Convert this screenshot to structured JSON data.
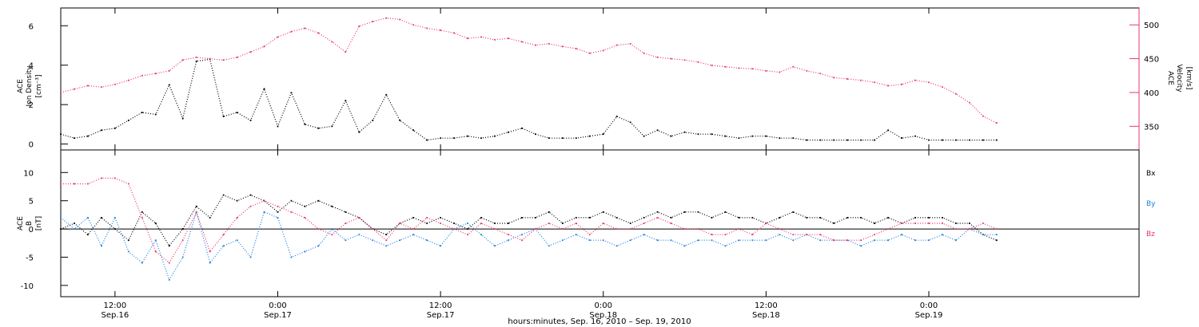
{
  "figure": {
    "xlabel": "hours:minutes, Sep. 16, 2010 – Sep. 19, 2010",
    "time_ticks": [
      {
        "hour": 12,
        "time": "12:00",
        "date": "Sep.16"
      },
      {
        "hour": 24,
        "time": "0:00",
        "date": "Sep.17"
      },
      {
        "hour": 36,
        "time": "12:00",
        "date": "Sep.17"
      },
      {
        "hour": 48,
        "time": "0:00",
        "date": "Sep.18"
      },
      {
        "hour": 60,
        "time": "12:00",
        "date": "Sep.18"
      },
      {
        "hour": 72,
        "time": "0:00",
        "date": "Sep.19"
      }
    ],
    "colors": {
      "black": "#000000",
      "pink": "#e8356a",
      "blue": "#1f7fe0"
    }
  },
  "chart_data": [
    {
      "type": "scatter",
      "panel": "top",
      "x_unit": "hours since Sep. 16, 2010 00:00",
      "xlim": [
        8,
        87.5
      ],
      "left_axis": {
        "line1": "ACE",
        "line2": "Ion Density",
        "line3": "[cm⁻³]",
        "ylim": [
          -0.3,
          6.9
        ],
        "ticks": [
          0,
          2,
          4,
          6
        ],
        "color": "#000000"
      },
      "right_axis": {
        "line1": "ACE",
        "line2": "Velocity",
        "line3": "[km/s]",
        "ylim": [
          315,
          525
        ],
        "ticks": [
          350,
          400,
          450,
          500
        ],
        "color": "#e8356a"
      },
      "series": [
        {
          "axis": "left",
          "color": "#000000",
          "x": [
            8,
            9,
            10,
            11,
            12,
            13,
            14,
            15,
            16,
            17,
            18,
            19,
            20,
            21,
            22,
            23,
            24,
            25,
            26,
            27,
            28,
            29,
            30,
            31,
            32,
            33,
            34,
            35,
            36,
            37,
            38,
            39,
            40,
            41,
            42,
            43,
            44,
            45,
            46,
            47,
            48,
            49,
            50,
            51,
            52,
            53,
            54,
            55,
            56,
            57,
            58,
            59,
            60,
            61,
            62,
            63,
            64,
            65,
            66,
            67,
            68,
            69,
            70,
            71,
            72,
            73,
            74,
            75,
            76,
            77
          ],
          "y": [
            0.5,
            0.3,
            0.4,
            0.7,
            0.8,
            1.2,
            1.6,
            1.5,
            3.0,
            1.3,
            4.2,
            4.3,
            1.4,
            1.6,
            1.2,
            2.8,
            0.9,
            2.6,
            1.0,
            0.8,
            0.9,
            2.2,
            0.6,
            1.2,
            2.5,
            1.2,
            0.7,
            0.2,
            0.3,
            0.3,
            0.4,
            0.3,
            0.4,
            0.6,
            0.8,
            0.5,
            0.3,
            0.3,
            0.3,
            0.4,
            0.5,
            1.4,
            1.1,
            0.4,
            0.7,
            0.4,
            0.6,
            0.5,
            0.5,
            0.4,
            0.3,
            0.4,
            0.4,
            0.3,
            0.3,
            0.2,
            0.2,
            0.2,
            0.2,
            0.2,
            0.2,
            0.7,
            0.3,
            0.4,
            0.2,
            0.2,
            0.2,
            0.2,
            0.2,
            0.2
          ]
        },
        {
          "axis": "right",
          "color": "#e8356a",
          "x": [
            8,
            9,
            10,
            11,
            12,
            13,
            14,
            15,
            16,
            17,
            18,
            19,
            20,
            21,
            22,
            23,
            24,
            25,
            26,
            27,
            28,
            29,
            30,
            31,
            32,
            33,
            34,
            35,
            36,
            37,
            38,
            39,
            40,
            41,
            42,
            43,
            44,
            45,
            46,
            47,
            48,
            49,
            50,
            51,
            52,
            53,
            54,
            55,
            56,
            57,
            58,
            59,
            60,
            61,
            62,
            63,
            64,
            65,
            66,
            67,
            68,
            69,
            70,
            71,
            72,
            73,
            74,
            75,
            76,
            77
          ],
          "y": [
            400,
            405,
            410,
            408,
            412,
            418,
            425,
            428,
            432,
            448,
            452,
            450,
            448,
            452,
            460,
            468,
            482,
            490,
            495,
            488,
            475,
            460,
            498,
            505,
            510,
            508,
            500,
            495,
            492,
            488,
            480,
            482,
            478,
            480,
            475,
            470,
            472,
            468,
            465,
            458,
            462,
            470,
            472,
            458,
            452,
            450,
            448,
            445,
            440,
            438,
            436,
            435,
            432,
            430,
            438,
            432,
            428,
            422,
            420,
            418,
            415,
            410,
            412,
            418,
            415,
            408,
            398,
            385,
            365,
            355
          ]
        }
      ]
    },
    {
      "type": "scatter",
      "panel": "bottom",
      "x_unit": "hours since Sep. 16, 2010 00:00",
      "xlim": [
        8,
        87.5
      ],
      "axis": {
        "line1": "ACE",
        "line2": "B",
        "line3": "[nT]",
        "ylim": [
          -12,
          14
        ],
        "ticks": [
          -10,
          -5,
          0,
          5,
          10
        ]
      },
      "series": [
        {
          "name": "Bx",
          "color": "#000000",
          "x": [
            8,
            9,
            10,
            11,
            12,
            13,
            14,
            15,
            16,
            17,
            18,
            19,
            20,
            21,
            22,
            23,
            24,
            25,
            26,
            27,
            28,
            29,
            30,
            31,
            32,
            33,
            34,
            35,
            36,
            37,
            38,
            39,
            40,
            41,
            42,
            43,
            44,
            45,
            46,
            47,
            48,
            49,
            50,
            51,
            52,
            53,
            54,
            55,
            56,
            57,
            58,
            59,
            60,
            61,
            62,
            63,
            64,
            65,
            66,
            67,
            68,
            69,
            70,
            71,
            72,
            73,
            74,
            75,
            76,
            77
          ],
          "y": [
            0,
            1,
            -1,
            2,
            0,
            -2,
            3,
            1,
            -3,
            0,
            4,
            2,
            6,
            5,
            6,
            5,
            3,
            5,
            4,
            5,
            4,
            3,
            2,
            0,
            -1,
            1,
            2,
            1,
            2,
            1,
            0,
            2,
            1,
            1,
            2,
            2,
            3,
            1,
            2,
            2,
            3,
            2,
            1,
            2,
            3,
            2,
            3,
            3,
            2,
            3,
            2,
            2,
            1,
            2,
            3,
            2,
            2,
            1,
            2,
            2,
            1,
            2,
            1,
            2,
            2,
            2,
            1,
            1,
            -1,
            -2
          ]
        },
        {
          "name": "By",
          "color": "#1f7fe0",
          "x": [
            8,
            9,
            10,
            11,
            12,
            13,
            14,
            15,
            16,
            17,
            18,
            19,
            20,
            21,
            22,
            23,
            24,
            25,
            26,
            27,
            28,
            29,
            30,
            31,
            32,
            33,
            34,
            35,
            36,
            37,
            38,
            39,
            40,
            41,
            42,
            43,
            44,
            45,
            46,
            47,
            48,
            49,
            50,
            51,
            52,
            53,
            54,
            55,
            56,
            57,
            58,
            59,
            60,
            61,
            62,
            63,
            64,
            65,
            66,
            67,
            68,
            69,
            70,
            71,
            72,
            73,
            74,
            75,
            76,
            77
          ],
          "y": [
            2,
            0,
            2,
            -3,
            2,
            -4,
            -6,
            -2,
            -9,
            -5,
            3,
            -6,
            -3,
            -2,
            -5,
            3,
            2,
            -5,
            -4,
            -3,
            0,
            -2,
            -1,
            -2,
            -3,
            -2,
            -1,
            -2,
            -3,
            0,
            1,
            -1,
            -3,
            -2,
            -1,
            0,
            -3,
            -2,
            -1,
            -2,
            -2,
            -3,
            -2,
            -1,
            -2,
            -2,
            -3,
            -2,
            -2,
            -3,
            -2,
            -2,
            -2,
            -1,
            -2,
            -1,
            -2,
            -2,
            -2,
            -3,
            -2,
            -2,
            -1,
            -2,
            -2,
            -1,
            -2,
            0,
            -1,
            -1
          ]
        },
        {
          "name": "Bz",
          "color": "#e8356a",
          "x": [
            8,
            9,
            10,
            11,
            12,
            13,
            14,
            15,
            16,
            17,
            18,
            19,
            20,
            21,
            22,
            23,
            24,
            25,
            26,
            27,
            28,
            29,
            30,
            31,
            32,
            33,
            34,
            35,
            36,
            37,
            38,
            39,
            40,
            41,
            42,
            43,
            44,
            45,
            46,
            47,
            48,
            49,
            50,
            51,
            52,
            53,
            54,
            55,
            56,
            57,
            58,
            59,
            60,
            61,
            62,
            63,
            64,
            65,
            66,
            67,
            68,
            69,
            70,
            71,
            72,
            73,
            74,
            75,
            76,
            77
          ],
          "y": [
            8,
            8,
            8,
            9,
            9,
            8,
            2,
            -4,
            -6,
            -2,
            3,
            -4,
            -1,
            2,
            4,
            5,
            4,
            3,
            2,
            0,
            -1,
            1,
            2,
            0,
            -2,
            1,
            0,
            2,
            1,
            0,
            -1,
            1,
            0,
            -1,
            -2,
            0,
            1,
            0,
            1,
            -1,
            1,
            0,
            0,
            1,
            2,
            1,
            0,
            0,
            -1,
            -1,
            0,
            -1,
            1,
            0,
            -1,
            -1,
            -1,
            -2,
            -2,
            -2,
            -1,
            0,
            1,
            1,
            1,
            1,
            0,
            0,
            1,
            0
          ]
        }
      ]
    }
  ]
}
